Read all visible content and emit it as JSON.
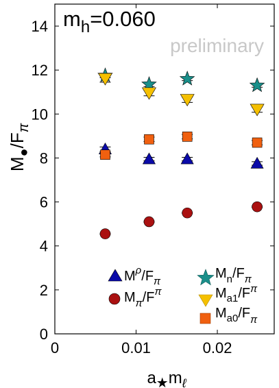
{
  "chart_data": {
    "type": "scatter",
    "annotation": {
      "main": "m",
      "sub": "h",
      "value": "=0.060"
    },
    "watermark": "preliminary",
    "xlabel": {
      "main": "a",
      "sub": "★",
      "after": "m",
      "after_sub": "ℓ"
    },
    "ylabel": {
      "main": "M",
      "sub": "●",
      "after": "/F",
      "after_sub": "π"
    },
    "xlim": [
      0,
      0.027
    ],
    "ylim": [
      0,
      15
    ],
    "xticks": [
      0,
      0.01,
      0.02
    ],
    "xtick_labels": [
      "0",
      "0.01",
      "0.02"
    ],
    "yticks": [
      0,
      2,
      4,
      6,
      8,
      10,
      12,
      14
    ],
    "ytick_labels": [
      "0",
      "2",
      "4",
      "6",
      "8",
      "10",
      "12",
      "14"
    ],
    "grid": false,
    "legend_position": "bottom",
    "series": [
      {
        "key": "rho",
        "legend": {
          "main": "M",
          "sup": "ρ",
          "after": "/F",
          "after_sub": "π"
        },
        "marker": "triangle-up",
        "color": "#0a0aa8",
        "points": [
          {
            "x": 0.0062,
            "y": 8.4,
            "err": 0.1
          },
          {
            "x": 0.0116,
            "y": 7.95,
            "err": 0.08
          },
          {
            "x": 0.0163,
            "y": 7.95,
            "err": 0.08
          },
          {
            "x": 0.0249,
            "y": 7.75,
            "err": 0.08
          }
        ]
      },
      {
        "key": "pi",
        "legend": {
          "main": "M",
          "sup": "π",
          "after": "/F",
          "after_sub": "π"
        },
        "marker": "circle",
        "color": "#aa1111",
        "points": [
          {
            "x": 0.0062,
            "y": 4.55,
            "err": 0.03
          },
          {
            "x": 0.0116,
            "y": 5.1,
            "err": 0.03
          },
          {
            "x": 0.0163,
            "y": 5.5,
            "err": 0.03
          },
          {
            "x": 0.0249,
            "y": 5.78,
            "err": 0.03
          }
        ]
      },
      {
        "key": "n",
        "legend": {
          "main": "M",
          "sup": "n",
          "after": "/F",
          "after_sub": "π"
        },
        "marker": "star",
        "color": "#1a8f8a",
        "points": [
          {
            "x": 0.0062,
            "y": 11.75,
            "err": 0.1
          },
          {
            "x": 0.0116,
            "y": 11.35,
            "err": 0.1
          },
          {
            "x": 0.0163,
            "y": 11.6,
            "err": 0.08
          },
          {
            "x": 0.0249,
            "y": 11.3,
            "err": 0.08
          }
        ]
      },
      {
        "key": "a1",
        "legend": {
          "main": "M",
          "sup": "a1",
          "after": "/F",
          "after_sub": "π"
        },
        "marker": "triangle-down",
        "color": "#f5c000",
        "points": [
          {
            "x": 0.0062,
            "y": 11.6,
            "err": 0.15
          },
          {
            "x": 0.0116,
            "y": 10.95,
            "err": 0.12
          },
          {
            "x": 0.0163,
            "y": 10.65,
            "err": 0.12
          },
          {
            "x": 0.0249,
            "y": 10.2,
            "err": 0.12
          }
        ]
      },
      {
        "key": "a0",
        "legend": {
          "main": "M",
          "sup": "a0",
          "after": "/F",
          "after_sub": "π"
        },
        "marker": "square",
        "color": "#f06010",
        "points": [
          {
            "x": 0.0062,
            "y": 8.15,
            "err": 0.1
          },
          {
            "x": 0.0116,
            "y": 8.85,
            "err": 0.1
          },
          {
            "x": 0.0163,
            "y": 8.97,
            "err": 0.1
          },
          {
            "x": 0.0249,
            "y": 8.7,
            "err": 0.1
          }
        ]
      }
    ]
  }
}
